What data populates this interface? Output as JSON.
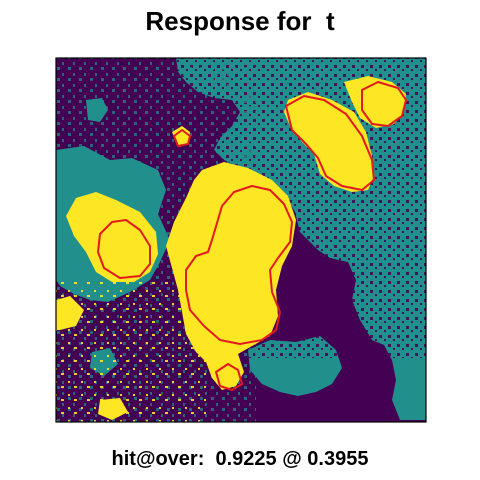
{
  "title": "Response for  t",
  "footer": {
    "metric_label": "hit@over:",
    "hit_value": "0.9225",
    "separator": "@",
    "over_value": "0.3955"
  },
  "colors": {
    "background_class": "#440154",
    "teal_class": "#21908C",
    "response_class": "#FDE725",
    "contour": "#E31A1C",
    "frame": "#000000"
  },
  "chart_data": {
    "type": "heatmap",
    "title": "Response for  t",
    "classes": [
      "background",
      "teal",
      "response"
    ],
    "contour_level": 0.3955,
    "hit_at_over": 0.9225,
    "xlabel": "",
    "ylabel": "",
    "legend": "none"
  }
}
